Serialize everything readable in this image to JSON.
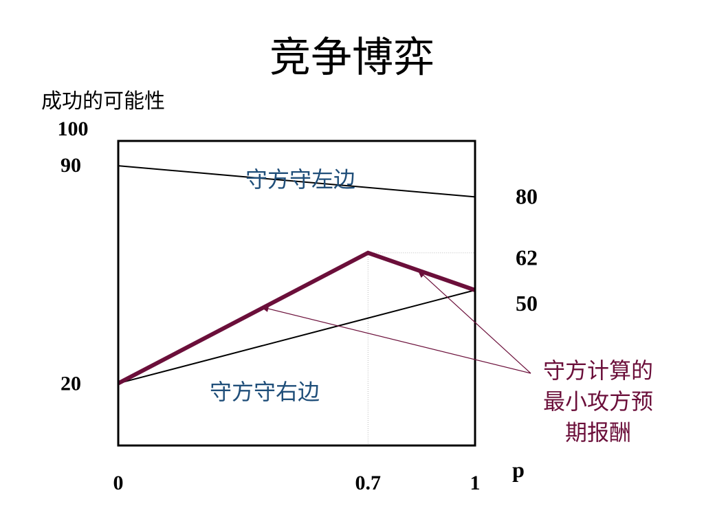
{
  "slide": {
    "title": "竞争博弈"
  },
  "chart_data": {
    "type": "line",
    "ylabel": "成功的可能性",
    "xlabel": "p",
    "xlim": [
      0,
      1
    ],
    "ylim": [
      0,
      100
    ],
    "x_ticks": [
      {
        "value": 0,
        "label": "0"
      },
      {
        "value": 0.7,
        "label": "0.7"
      },
      {
        "value": 1,
        "label": "1"
      }
    ],
    "y_tick_labels_left": [
      {
        "value": 100,
        "label": "100"
      },
      {
        "value": 90,
        "label": "90"
      },
      {
        "value": 20,
        "label": "20"
      }
    ],
    "y_tick_labels_right": [
      {
        "value": 80,
        "label": "80"
      },
      {
        "value": 62,
        "label": "62"
      },
      {
        "value": 50,
        "label": "50"
      }
    ],
    "series": [
      {
        "x": [
          0,
          1
        ],
        "y": [
          90,
          80
        ],
        "color": "#000000"
      },
      {
        "x": [
          0,
          1
        ],
        "y": [
          20,
          50
        ],
        "color": "#000000"
      },
      {
        "x": [
          0,
          0.7,
          1
        ],
        "y": [
          20,
          62,
          50
        ],
        "color": "#6b0f3a",
        "emphasis": true
      }
    ],
    "reference_lines": [
      {
        "type": "vertical",
        "x": 0.7,
        "y_from": 0,
        "y_to": 62,
        "style": "dotted"
      },
      {
        "type": "horizontal",
        "y": 62,
        "x_from": 0.7,
        "x_to": 1,
        "style": "dotted"
      }
    ],
    "annotations": {
      "region_upper": "守方守左边",
      "region_lower": "守方守右边",
      "callout_lines": [
        "守方计算的",
        "最小攻方预",
        "期报酬"
      ],
      "callout_targets": [
        {
          "x": 0.4,
          "y": 44.6
        },
        {
          "x": 0.84,
          "y": 56.4
        }
      ]
    },
    "colors": {
      "emphasis": "#6b0f3a",
      "region_text": "#1f4e79",
      "callout_text": "#6b0f3a",
      "guide": "#bbbbbb"
    }
  }
}
